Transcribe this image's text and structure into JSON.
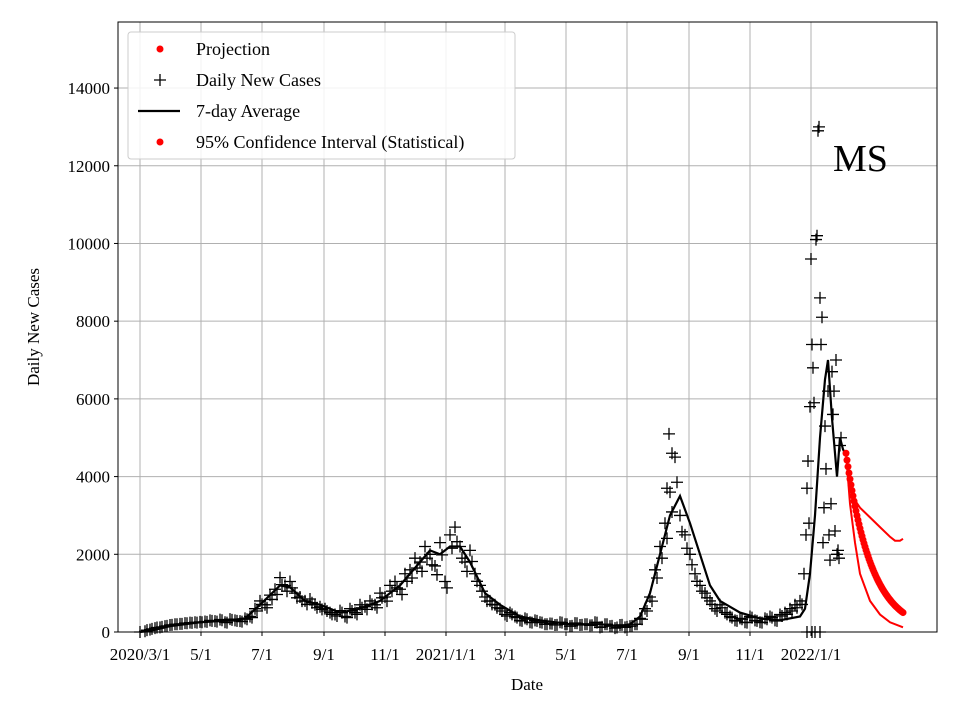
{
  "chart_data": {
    "type": "line",
    "title": "MS",
    "xlabel": "Date",
    "ylabel": "Daily New Cases",
    "x_units": "days since 2020/3/1",
    "xlim": [
      -22,
      797
    ],
    "ylim": [
      0,
      15700
    ],
    "grid": true,
    "legend_placement": "top-left",
    "x_ticks": [
      {
        "day": 0,
        "label": "2020/3/1"
      },
      {
        "day": 61,
        "label": "5/1"
      },
      {
        "day": 122,
        "label": "7/1"
      },
      {
        "day": 184,
        "label": "9/1"
      },
      {
        "day": 245,
        "label": "11/1"
      },
      {
        "day": 306,
        "label": "2021/1/1"
      },
      {
        "day": 365,
        "label": "3/1"
      },
      {
        "day": 426,
        "label": "5/1"
      },
      {
        "day": 487,
        "label": "7/1"
      },
      {
        "day": 549,
        "label": "9/1"
      },
      {
        "day": 610,
        "label": "11/1"
      },
      {
        "day": 671,
        "label": "2022/1/1"
      }
    ],
    "y_ticks": [
      0,
      2000,
      4000,
      6000,
      8000,
      10000,
      12000,
      14000
    ],
    "legend": [
      {
        "label": "Projection",
        "marker": "dot",
        "color": "#ff0000"
      },
      {
        "label": "Daily New Cases",
        "marker": "plus",
        "color": "#000000"
      },
      {
        "label": "7-day Average",
        "marker": "line",
        "color": "#000000"
      },
      {
        "label": "95% Confidence Interval (Statistical)",
        "marker": "dot",
        "color": "#ff0000"
      }
    ],
    "daily_new_cases": {
      "start_day": 0,
      "step_days": 5,
      "values": [
        0,
        20,
        60,
        100,
        120,
        150,
        180,
        200,
        210,
        230,
        240,
        250,
        260,
        270,
        300,
        280,
        320,
        250,
        330,
        300,
        280,
        350,
        400,
        600,
        800,
        700,
        950,
        1100,
        1400,
        1200,
        1300,
        1000,
        900,
        800,
        850,
        700,
        650,
        600,
        500,
        450,
        550,
        400,
        600,
        500,
        700,
        650,
        800,
        700,
        1000,
        900,
        1200,
        1300,
        1100,
        1500,
        1600,
        1900,
        1800,
        2200,
        2000,
        1700,
        2300,
        1300,
        2500,
        2700,
        2200,
        1800,
        2100,
        1500,
        1200,
        900,
        800,
        700,
        600,
        450,
        500,
        400,
        300,
        350,
        250,
        300,
        250,
        200,
        220,
        180,
        250,
        200,
        150,
        230,
        180,
        200,
        170,
        250,
        120,
        200,
        150,
        100,
        180,
        120,
        150,
        200,
        350,
        600,
        900,
        1600,
        2200,
        2800,
        3600,
        4500,
        3000,
        2500,
        2000,
        1500,
        1200,
        1000,
        800,
        600,
        700,
        500,
        400,
        300,
        350,
        250,
        400,
        300,
        250,
        350,
        400,
        300,
        450,
        500,
        600,
        700,
        800
      ],
      "extra_points": [
        [
          529,
          5100
        ],
        [
          532,
          4600
        ],
        [
          527,
          3700
        ],
        [
          664,
          1500
        ],
        [
          666,
          2500
        ],
        [
          667,
          3700
        ],
        [
          668,
          4400
        ],
        [
          669,
          2800
        ],
        [
          670,
          5800
        ],
        [
          671,
          9600
        ],
        [
          672,
          7400
        ],
        [
          673,
          6800
        ],
        [
          674,
          5900
        ],
        [
          676,
          10100
        ],
        [
          677,
          10200
        ],
        [
          678,
          12900
        ],
        [
          679,
          13000
        ],
        [
          680,
          8600
        ],
        [
          681,
          7400
        ],
        [
          682,
          8100
        ],
        [
          683,
          2300
        ],
        [
          684,
          3200
        ],
        [
          685,
          5300
        ],
        [
          686,
          4200
        ],
        [
          688,
          6200
        ],
        [
          689,
          2500
        ],
        [
          690,
          1850
        ],
        [
          691,
          3300
        ],
        [
          692,
          6700
        ],
        [
          693,
          5600
        ],
        [
          694,
          6200
        ],
        [
          695,
          2600
        ],
        [
          696,
          7000
        ],
        [
          697,
          2000
        ],
        [
          698,
          2100
        ],
        [
          699,
          1900
        ],
        [
          700,
          4800
        ],
        [
          701,
          5000
        ],
        [
          667,
          0
        ],
        [
          672,
          0
        ],
        [
          675,
          0
        ],
        [
          680,
          0
        ]
      ]
    },
    "seven_day_average": [
      [
        0,
        0
      ],
      [
        14,
        50
      ],
      [
        30,
        150
      ],
      [
        60,
        250
      ],
      [
        90,
        300
      ],
      [
        105,
        350
      ],
      [
        120,
        700
      ],
      [
        140,
        1200
      ],
      [
        150,
        1150
      ],
      [
        165,
        800
      ],
      [
        180,
        700
      ],
      [
        200,
        500
      ],
      [
        220,
        600
      ],
      [
        240,
        800
      ],
      [
        260,
        1200
      ],
      [
        280,
        1800
      ],
      [
        290,
        2100
      ],
      [
        300,
        2000
      ],
      [
        310,
        2200
      ],
      [
        320,
        2200
      ],
      [
        330,
        1800
      ],
      [
        345,
        1000
      ],
      [
        360,
        700
      ],
      [
        380,
        400
      ],
      [
        400,
        300
      ],
      [
        430,
        200
      ],
      [
        460,
        200
      ],
      [
        480,
        150
      ],
      [
        490,
        200
      ],
      [
        500,
        400
      ],
      [
        510,
        1000
      ],
      [
        520,
        2000
      ],
      [
        530,
        3000
      ],
      [
        540,
        3500
      ],
      [
        550,
        2800
      ],
      [
        560,
        2000
      ],
      [
        570,
        1200
      ],
      [
        580,
        800
      ],
      [
        600,
        500
      ],
      [
        620,
        350
      ],
      [
        640,
        300
      ],
      [
        660,
        400
      ],
      [
        665,
        600
      ],
      [
        670,
        1500
      ],
      [
        675,
        3000
      ],
      [
        680,
        5000
      ],
      [
        685,
        6500
      ],
      [
        688,
        7000
      ],
      [
        692,
        5500
      ],
      [
        697,
        4000
      ],
      [
        700,
        5000
      ],
      [
        703,
        4700
      ],
      [
        705,
        4600
      ]
    ],
    "projection": {
      "start_day": 706,
      "end_day": 763,
      "start_value": 4600,
      "end_value": 500
    },
    "ci_upper": [
      [
        706,
        4600
      ],
      [
        710,
        3700
      ],
      [
        712,
        3500
      ],
      [
        720,
        3200
      ],
      [
        730,
        2950
      ],
      [
        740,
        2700
      ],
      [
        750,
        2450
      ],
      [
        755,
        2350
      ],
      [
        760,
        2350
      ],
      [
        763,
        2400
      ]
    ],
    "ci_lower": [
      [
        706,
        4600
      ],
      [
        710,
        3300
      ],
      [
        715,
        2300
      ],
      [
        720,
        1500
      ],
      [
        730,
        800
      ],
      [
        740,
        450
      ],
      [
        750,
        250
      ],
      [
        763,
        120
      ]
    ]
  }
}
